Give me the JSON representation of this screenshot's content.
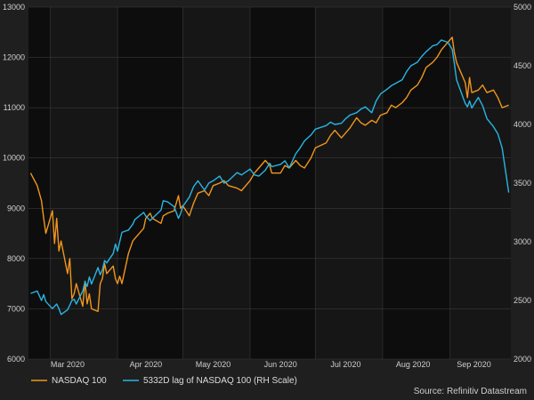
{
  "chart_data": {
    "type": "line",
    "title": "",
    "source": "Source: Refinitiv Datastream",
    "grid": true,
    "legend_placement": "bottom-left",
    "x_ticks": [
      "Mar 2020",
      "Apr 2020",
      "May 2020",
      "Jun 2020",
      "Jul 2020",
      "Aug 2020",
      "Sep 2020"
    ],
    "y_left": {
      "min": 6000,
      "max": 13000,
      "ticks": [
        6000,
        7000,
        8000,
        9000,
        10000,
        11000,
        12000,
        13000
      ]
    },
    "y_right": {
      "min": 2000,
      "max": 5000,
      "ticks": [
        2000,
        2500,
        3000,
        3500,
        4000,
        4500,
        5000
      ]
    },
    "series": [
      {
        "name": "NASDAQ 100",
        "axis": "left",
        "color": "#f0961e",
        "x": [
          "2020-02-21",
          "2020-02-24",
          "2020-02-25",
          "2020-02-26",
          "2020-02-27",
          "2020-02-28",
          "2020-03-02",
          "2020-03-03",
          "2020-03-04",
          "2020-03-05",
          "2020-03-06",
          "2020-03-09",
          "2020-03-10",
          "2020-03-11",
          "2020-03-12",
          "2020-03-13",
          "2020-03-16",
          "2020-03-17",
          "2020-03-18",
          "2020-03-19",
          "2020-03-20",
          "2020-03-23",
          "2020-03-24",
          "2020-03-25",
          "2020-03-26",
          "2020-03-27",
          "2020-03-30",
          "2020-03-31",
          "2020-04-01",
          "2020-04-02",
          "2020-04-03",
          "2020-04-06",
          "2020-04-08",
          "2020-04-09",
          "2020-04-13",
          "2020-04-14",
          "2020-04-16",
          "2020-04-17",
          "2020-04-21",
          "2020-04-22",
          "2020-04-24",
          "2020-04-27",
          "2020-04-29",
          "2020-04-30",
          "2020-05-01",
          "2020-05-04",
          "2020-05-06",
          "2020-05-08",
          "2020-05-11",
          "2020-05-13",
          "2020-05-15",
          "2020-05-18",
          "2020-05-20",
          "2020-05-22",
          "2020-05-26",
          "2020-05-28",
          "2020-06-01",
          "2020-06-03",
          "2020-06-05",
          "2020-06-08",
          "2020-06-10",
          "2020-06-11",
          "2020-06-15",
          "2020-06-17",
          "2020-06-19",
          "2020-06-22",
          "2020-06-24",
          "2020-06-26",
          "2020-06-29",
          "2020-07-01",
          "2020-07-06",
          "2020-07-08",
          "2020-07-10",
          "2020-07-13",
          "2020-07-15",
          "2020-07-17",
          "2020-07-20",
          "2020-07-22",
          "2020-07-24",
          "2020-07-27",
          "2020-07-29",
          "2020-07-31",
          "2020-08-03",
          "2020-08-05",
          "2020-08-07",
          "2020-08-10",
          "2020-08-12",
          "2020-08-14",
          "2020-08-17",
          "2020-08-19",
          "2020-08-21",
          "2020-08-24",
          "2020-08-26",
          "2020-08-28",
          "2020-08-31",
          "2020-09-02",
          "2020-09-03",
          "2020-09-04",
          "2020-09-08",
          "2020-09-09",
          "2020-09-10",
          "2020-09-11",
          "2020-09-14",
          "2020-09-16",
          "2020-09-18",
          "2020-09-21",
          "2020-09-23",
          "2020-09-25",
          "2020-09-28"
        ],
        "values": [
          9700,
          9450,
          9300,
          9150,
          8800,
          8500,
          8950,
          8300,
          8800,
          8150,
          8350,
          7700,
          8000,
          7200,
          7300,
          7500,
          7050,
          7550,
          7100,
          7300,
          7000,
          6950,
          7500,
          7600,
          7900,
          7700,
          7850,
          7600,
          7500,
          7650,
          7500,
          8100,
          8350,
          8400,
          8600,
          8800,
          8900,
          8800,
          8700,
          8850,
          8900,
          8950,
          9250,
          9000,
          9050,
          8850,
          9100,
          9300,
          9350,
          9250,
          9450,
          9500,
          9550,
          9450,
          9400,
          9350,
          9550,
          9700,
          9800,
          9950,
          9850,
          9700,
          9700,
          9850,
          9800,
          9950,
          9850,
          9800,
          10000,
          10200,
          10300,
          10450,
          10550,
          10400,
          10500,
          10600,
          10800,
          10700,
          10650,
          10750,
          10700,
          10850,
          10900,
          11050,
          11000,
          11100,
          11200,
          11350,
          11450,
          11600,
          11800,
          11900,
          12000,
          12150,
          12300,
          12400,
          12100,
          11900,
          11500,
          11200,
          11600,
          11300,
          11350,
          11450,
          11300,
          11350,
          11200,
          11000,
          11050
        ]
      },
      {
        "name": "5332D lag of NASDAQ 100 (RH Scale)",
        "axis": "right",
        "color": "#29b5e3",
        "x": [
          "2020-02-21",
          "2020-02-24",
          "2020-02-25",
          "2020-02-26",
          "2020-02-27",
          "2020-02-28",
          "2020-03-02",
          "2020-03-03",
          "2020-03-04",
          "2020-03-05",
          "2020-03-06",
          "2020-03-09",
          "2020-03-10",
          "2020-03-11",
          "2020-03-12",
          "2020-03-13",
          "2020-03-16",
          "2020-03-17",
          "2020-03-18",
          "2020-03-19",
          "2020-03-20",
          "2020-03-23",
          "2020-03-24",
          "2020-03-25",
          "2020-03-26",
          "2020-03-27",
          "2020-03-30",
          "2020-03-31",
          "2020-04-01",
          "2020-04-02",
          "2020-04-03",
          "2020-04-06",
          "2020-04-08",
          "2020-04-09",
          "2020-04-13",
          "2020-04-14",
          "2020-04-16",
          "2020-04-17",
          "2020-04-21",
          "2020-04-22",
          "2020-04-24",
          "2020-04-27",
          "2020-04-29",
          "2020-04-30",
          "2020-05-01",
          "2020-05-04",
          "2020-05-06",
          "2020-05-08",
          "2020-05-11",
          "2020-05-13",
          "2020-05-15",
          "2020-05-18",
          "2020-05-20",
          "2020-05-22",
          "2020-05-26",
          "2020-05-28",
          "2020-06-01",
          "2020-06-03",
          "2020-06-05",
          "2020-06-08",
          "2020-06-10",
          "2020-06-11",
          "2020-06-15",
          "2020-06-17",
          "2020-06-19",
          "2020-06-22",
          "2020-06-24",
          "2020-06-26",
          "2020-06-29",
          "2020-07-01",
          "2020-07-06",
          "2020-07-08",
          "2020-07-10",
          "2020-07-13",
          "2020-07-15",
          "2020-07-17",
          "2020-07-20",
          "2020-07-22",
          "2020-07-24",
          "2020-07-27",
          "2020-07-29",
          "2020-07-31",
          "2020-08-03",
          "2020-08-05",
          "2020-08-07",
          "2020-08-10",
          "2020-08-12",
          "2020-08-14",
          "2020-08-17",
          "2020-08-19",
          "2020-08-21",
          "2020-08-24",
          "2020-08-26",
          "2020-08-28",
          "2020-08-31",
          "2020-09-02",
          "2020-09-03",
          "2020-09-04",
          "2020-09-08",
          "2020-09-09",
          "2020-09-10",
          "2020-09-11",
          "2020-09-14",
          "2020-09-16",
          "2020-09-18",
          "2020-09-21",
          "2020-09-23",
          "2020-09-25",
          "2020-09-28"
        ],
        "values": [
          2560,
          2580,
          2540,
          2500,
          2550,
          2490,
          2430,
          2450,
          2470,
          2430,
          2380,
          2420,
          2460,
          2500,
          2510,
          2470,
          2580,
          2660,
          2620,
          2700,
          2640,
          2780,
          2720,
          2760,
          2840,
          2820,
          2900,
          2980,
          2920,
          3000,
          3080,
          3100,
          3150,
          3190,
          3250,
          3220,
          3180,
          3200,
          3270,
          3350,
          3340,
          3300,
          3200,
          3240,
          3300,
          3380,
          3470,
          3520,
          3440,
          3500,
          3520,
          3560,
          3500,
          3520,
          3590,
          3570,
          3620,
          3570,
          3560,
          3610,
          3670,
          3640,
          3660,
          3690,
          3630,
          3750,
          3800,
          3860,
          3910,
          3960,
          3990,
          4020,
          4000,
          4010,
          4050,
          4080,
          4100,
          4130,
          4150,
          4100,
          4200,
          4260,
          4300,
          4330,
          4350,
          4380,
          4450,
          4500,
          4530,
          4580,
          4620,
          4670,
          4680,
          4720,
          4700,
          4640,
          4520,
          4380,
          4180,
          4150,
          4200,
          4140,
          4230,
          4160,
          4050,
          3980,
          3920,
          3800,
          3420
        ]
      }
    ]
  }
}
